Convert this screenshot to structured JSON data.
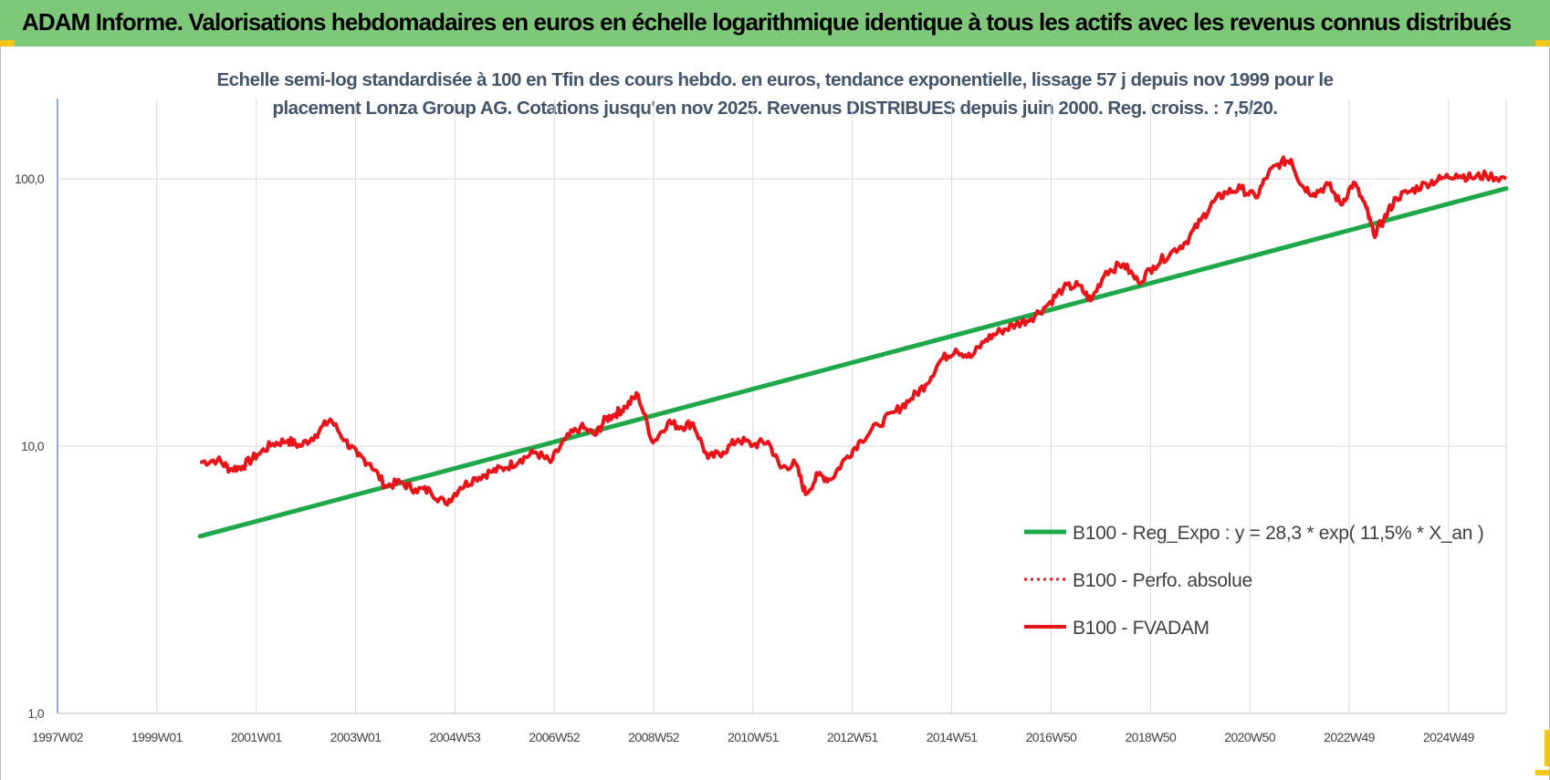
{
  "banner": {
    "title": "ADAM Informe. Valorisations hebdomadaires en euros en échelle logarithmique identique à tous les actifs avec les revenus connus distribués"
  },
  "chart_data": {
    "type": "line",
    "title_line1": "Echelle semi-log standardisée à 100 en Tfin des cours hebdo. en euros, tendance exponentielle, lissage 57 j depuis nov 1999 pour le",
    "title_line2": "placement Lonza Group AG. Cotations jusqu'en nov 2025.  Revenus DISTRIBUES depuis juin 2000.  Reg. croiss. : 7,5/20.",
    "y_scale": "log",
    "ylim": [
      1,
      200
    ],
    "y_ticks": [
      1,
      10,
      100
    ],
    "y_tick_labels": [
      "1,0",
      "10,0",
      "100,0"
    ],
    "x_ticks": [
      "1997W02",
      "1999W01",
      "2001W01",
      "2003W01",
      "2004W53",
      "2006W52",
      "2008W52",
      "2010W51",
      "2012W51",
      "2014W51",
      "2016W50",
      "2018W50",
      "2020W50",
      "2022W49",
      "2024W49"
    ],
    "x_range_years": [
      1997.0,
      2025.95
    ],
    "grid": true,
    "legend_position": "bottom-right",
    "colors": {
      "regression": "#1fa84a",
      "perf_absolue": "#e02020",
      "fvadam": "#e8141a",
      "axis": "#4a7ab5",
      "grid": "#d9d9d9"
    },
    "series": [
      {
        "name": "B100 - Reg_Expo : y = 28,3 * exp( 11,5% *  X_an )",
        "style": "solid-green",
        "x": [
          1999.85,
          2025.95
        ],
        "y": [
          4.6,
          92
        ]
      },
      {
        "name": "B100 - Perfo. absolue",
        "style": "dotted-red",
        "x": [],
        "y": []
      },
      {
        "name": "B100 - FVADAM",
        "style": "solid-red",
        "x": [
          1999.85,
          2000.2,
          2000.45,
          2000.7,
          2001.0,
          2001.3,
          2001.6,
          2001.85,
          2002.15,
          2002.45,
          2002.75,
          2003.0,
          2003.25,
          2003.55,
          2003.85,
          2004.15,
          2004.45,
          2004.75,
          2005.05,
          2005.35,
          2005.65,
          2005.95,
          2006.25,
          2006.55,
          2006.85,
          2007.15,
          2007.45,
          2007.75,
          2007.95,
          2008.15,
          2008.35,
          2008.6,
          2008.9,
          2009.2,
          2009.45,
          2009.7,
          2010.0,
          2010.3,
          2010.6,
          2010.9,
          2011.2,
          2011.45,
          2011.75,
          2011.95,
          2012.2,
          2012.45,
          2012.75,
          2013.05,
          2013.4,
          2013.75,
          2014.05,
          2014.35,
          2014.65,
          2014.95,
          2015.25,
          2015.55,
          2015.85,
          2016.15,
          2016.45,
          2016.8,
          2017.1,
          2017.4,
          2017.65,
          2017.95,
          2018.3,
          2018.6,
          2018.9,
          2019.25,
          2019.55,
          2019.85,
          2020.1,
          2020.35,
          2020.65,
          2020.95,
          2021.2,
          2021.45,
          2021.65,
          2021.85,
          2022.1,
          2022.4,
          2022.65,
          2022.9,
          2023.15,
          2023.3,
          2023.5,
          2023.75,
          2024.05,
          2024.35,
          2024.65,
          2024.95,
          2025.25,
          2025.55,
          2025.95
        ],
        "y": [
          8.7,
          8.9,
          8.2,
          8.4,
          9.3,
          10.2,
          10.5,
          10.0,
          11.0,
          12.6,
          10.5,
          9.2,
          8.6,
          7.1,
          7.3,
          6.9,
          6.8,
          6.1,
          7.0,
          7.6,
          8.0,
          8.3,
          8.9,
          9.5,
          8.7,
          10.6,
          11.8,
          11.0,
          12.6,
          13.2,
          14.0,
          15.6,
          10.3,
          12.3,
          11.8,
          12.2,
          9.0,
          9.5,
          10.6,
          10.1,
          10.4,
          8.3,
          8.6,
          6.6,
          7.8,
          7.5,
          9.0,
          10.5,
          12.0,
          13.5,
          15.0,
          17.0,
          21.0,
          23.0,
          21.5,
          25.0,
          27.0,
          28.5,
          30.0,
          34.0,
          39.0,
          40.0,
          35.0,
          45.0,
          48.0,
          41.0,
          47.0,
          53.0,
          58.0,
          70.0,
          82.0,
          89.0,
          92.0,
          85.0,
          105.0,
          115.0,
          118.0,
          95.0,
          88.0,
          95.0,
          80.0,
          97.0,
          78.0,
          62.0,
          70.0,
          85.0,
          90.0,
          96.0,
          100.0,
          104.0,
          101.0,
          103.0,
          100.0
        ]
      }
    ]
  }
}
